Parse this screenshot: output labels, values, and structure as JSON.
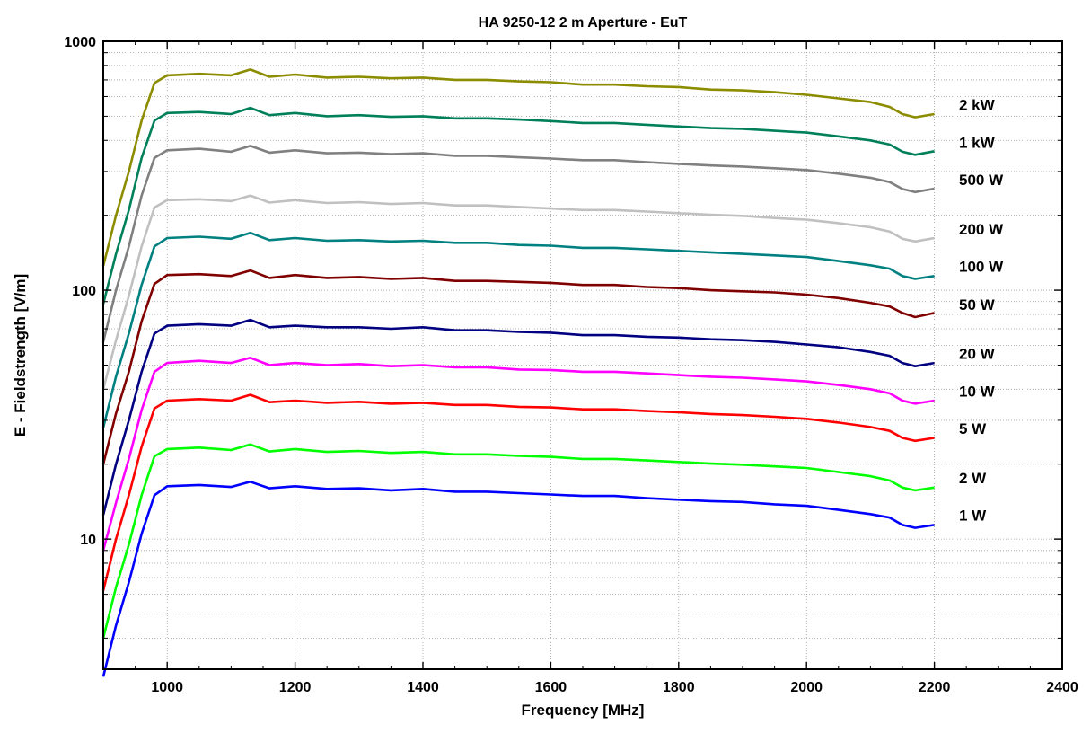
{
  "chart_data": {
    "type": "line",
    "title": "HA 9250-12   2 m Aperture - EuT",
    "xlabel": "Frequency [MHz]",
    "ylabel": "E - Fieldstrength [V/m]",
    "xlim": [
      900,
      2400
    ],
    "ylim": [
      3,
      1000
    ],
    "yscale": "log",
    "grid": true,
    "x_ticks": [
      1000,
      1200,
      1400,
      1600,
      1800,
      2000,
      2200,
      2400
    ],
    "x_tick_labels": [
      "1000",
      "1200",
      "1400",
      "1600",
      "1800",
      "2000",
      "2200",
      "2400"
    ],
    "y_ticks": [
      10,
      100,
      1000
    ],
    "y_tick_labels": [
      "10",
      "100",
      "1000"
    ],
    "x": [
      900,
      920,
      940,
      960,
      980,
      1000,
      1050,
      1100,
      1130,
      1160,
      1200,
      1250,
      1300,
      1350,
      1400,
      1450,
      1500,
      1550,
      1600,
      1650,
      1700,
      1750,
      1800,
      1850,
      1900,
      1950,
      2000,
      2050,
      2100,
      2130,
      2150,
      2170,
      2200
    ],
    "series": [
      {
        "name": "2 kW",
        "color": "#8c8c00",
        "values": [
          125,
          200,
          300,
          480,
          680,
          730,
          740,
          730,
          770,
          720,
          735,
          715,
          720,
          710,
          715,
          700,
          700,
          690,
          685,
          670,
          670,
          660,
          655,
          640,
          635,
          625,
          610,
          590,
          570,
          545,
          510,
          495,
          510
        ]
      },
      {
        "name": "1 kW",
        "color": "#00805a",
        "values": [
          88,
          140,
          210,
          340,
          480,
          515,
          520,
          510,
          540,
          505,
          515,
          500,
          505,
          497,
          500,
          490,
          490,
          485,
          478,
          470,
          470,
          462,
          455,
          448,
          445,
          437,
          430,
          415,
          400,
          385,
          360,
          350,
          362
        ]
      },
      {
        "name": "500 W",
        "color": "#808080",
        "values": [
          62,
          100,
          150,
          240,
          340,
          365,
          370,
          360,
          380,
          357,
          365,
          355,
          357,
          352,
          355,
          347,
          347,
          342,
          338,
          333,
          333,
          327,
          322,
          317,
          314,
          309,
          304,
          294,
          283,
          272,
          255,
          248,
          256
        ]
      },
      {
        "name": "200 W",
        "color": "#c0c0c0",
        "values": [
          40,
          63,
          95,
          150,
          215,
          230,
          232,
          228,
          240,
          225,
          230,
          224,
          226,
          222,
          224,
          219,
          219,
          216,
          213,
          210,
          210,
          207,
          204,
          201,
          199,
          195,
          192,
          186,
          179,
          172,
          161,
          157,
          162
        ]
      },
      {
        "name": "100 W",
        "color": "#008080",
        "values": [
          28,
          45,
          67,
          105,
          150,
          162,
          164,
          161,
          170,
          159,
          162,
          158,
          159,
          157,
          158,
          155,
          155,
          152,
          151,
          148,
          148,
          146,
          144,
          142,
          140,
          138,
          136,
          131,
          126,
          122,
          114,
          111,
          114
        ]
      },
      {
        "name": "50 W",
        "color": "#800000",
        "values": [
          20,
          32,
          47,
          75,
          106,
          115,
          116,
          114,
          120,
          112,
          115,
          112,
          113,
          111,
          112,
          109,
          109,
          108,
          107,
          105,
          105,
          103,
          102,
          100,
          99,
          98,
          96,
          93,
          89,
          86,
          81,
          78,
          81
        ]
      },
      {
        "name": "20 W",
        "color": "#000080",
        "values": [
          12.5,
          20,
          30,
          47,
          67,
          72,
          73,
          72,
          76,
          71,
          72,
          71,
          71,
          70,
          71,
          69,
          69,
          68,
          67.5,
          66,
          66,
          65,
          64.5,
          63.5,
          63,
          62,
          60.5,
          59,
          56.5,
          54.5,
          51,
          49.5,
          51
        ]
      },
      {
        "name": "10 W",
        "color": "#ff00ff",
        "values": [
          9,
          14,
          21,
          33,
          47,
          51,
          52,
          51,
          53.5,
          50,
          51,
          50,
          50.5,
          49.5,
          50,
          49,
          49,
          48,
          47.8,
          47,
          47,
          46.3,
          45.6,
          44.9,
          44.5,
          43.8,
          43,
          41.6,
          40,
          38.5,
          36,
          35,
          36
        ]
      },
      {
        "name": "5 W",
        "color": "#ff0000",
        "values": [
          6.2,
          10,
          15,
          23.5,
          33.5,
          36,
          36.5,
          36,
          38,
          35.5,
          36,
          35.3,
          35.6,
          35,
          35.3,
          34.6,
          34.6,
          34,
          33.8,
          33.2,
          33.2,
          32.7,
          32.3,
          31.8,
          31.5,
          31,
          30.4,
          29.4,
          28.2,
          27.2,
          25.5,
          24.8,
          25.5
        ]
      },
      {
        "name": "2 W",
        "color": "#00ff00",
        "values": [
          4,
          6.4,
          9.5,
          15,
          21.5,
          23,
          23.3,
          22.8,
          24,
          22.5,
          23,
          22.4,
          22.6,
          22.2,
          22.4,
          21.9,
          21.9,
          21.6,
          21.4,
          21,
          21,
          20.7,
          20.4,
          20.1,
          19.9,
          19.6,
          19.3,
          18.6,
          17.9,
          17.2,
          16.1,
          15.7,
          16.1
        ]
      },
      {
        "name": "1 W",
        "color": "#0000ff",
        "values": [
          2.8,
          4.5,
          6.7,
          10.5,
          15,
          16.3,
          16.5,
          16.2,
          17,
          16,
          16.3,
          15.9,
          16,
          15.7,
          15.9,
          15.5,
          15.5,
          15.3,
          15.1,
          14.9,
          14.9,
          14.6,
          14.4,
          14.2,
          14.1,
          13.8,
          13.6,
          13.1,
          12.6,
          12.2,
          11.4,
          11.1,
          11.4
        ]
      }
    ]
  }
}
